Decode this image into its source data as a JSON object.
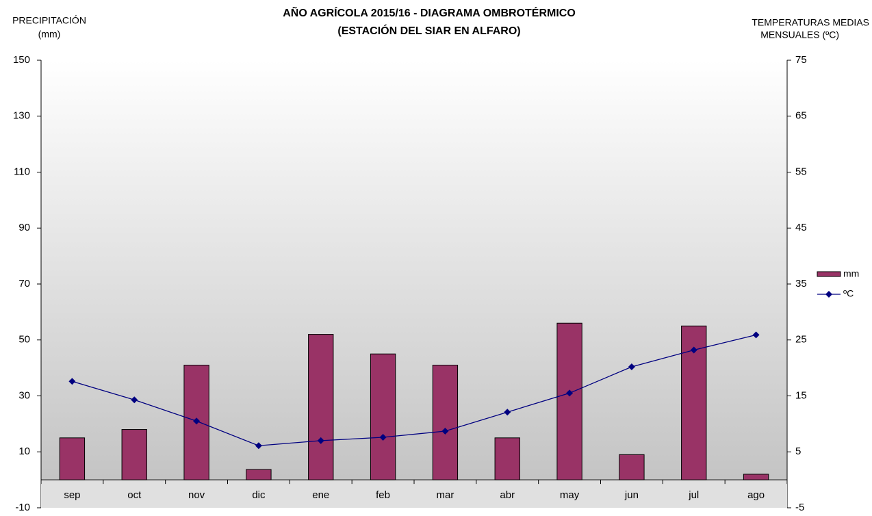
{
  "chart_data": {
    "type": "bar",
    "title": [
      "AÑO AGRÍCOLA 2015/16 - DIAGRAMA OMBROTÉRMICO",
      "(ESTACIÓN DEL SIAR EN  ALFARO)"
    ],
    "y_label": [
      "PRECIPITACIÓN",
      "(mm)"
    ],
    "y2_label": [
      "TEMPERATURAS  MEDIAS",
      "MENSUALES  (ºC)"
    ],
    "categories": [
      "sep",
      "oct",
      "nov",
      "dic",
      "ene",
      "feb",
      "mar",
      "abr",
      "may",
      "jun",
      "jul",
      "ago"
    ],
    "series": [
      {
        "name": "mm",
        "type": "bar",
        "color": "#993366",
        "values": [
          15,
          18,
          41,
          3.7,
          52,
          45,
          41,
          15,
          56,
          9,
          55,
          2
        ]
      },
      {
        "name": "ºC",
        "type": "line",
        "axis": "y2",
        "color": "#000080",
        "values": [
          17.6,
          14.3,
          10.5,
          6.1,
          7.0,
          7.6,
          8.7,
          12.1,
          15.5,
          20.2,
          23.2,
          25.9
        ]
      }
    ],
    "ylim": [
      -10,
      150
    ],
    "yticks": [
      -10,
      10,
      30,
      50,
      70,
      90,
      110,
      130,
      150
    ],
    "y2lim": [
      -5,
      75
    ],
    "y2ticks": [
      -5,
      5,
      15,
      25,
      35,
      45,
      55,
      65,
      75
    ],
    "grid": false,
    "legend": "right"
  }
}
